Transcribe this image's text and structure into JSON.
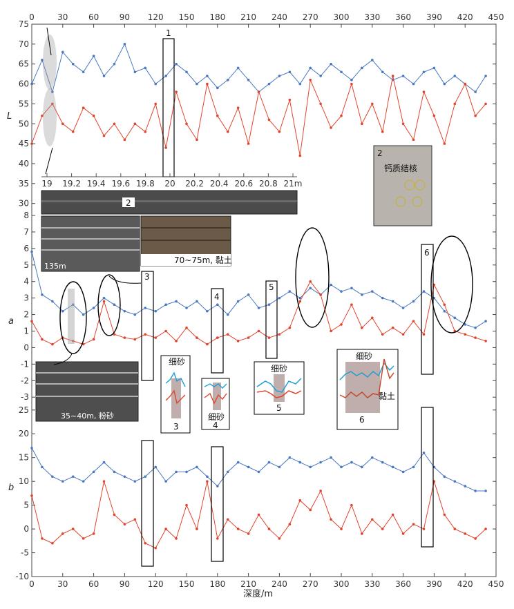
{
  "chart_data": {
    "type": "line",
    "x_axis": {
      "label": "深度/m",
      "range": [
        0,
        450
      ],
      "ticks": [
        0,
        30,
        60,
        90,
        120,
        150,
        180,
        210,
        240,
        270,
        300,
        330,
        360,
        390,
        420,
        450
      ]
    },
    "colors": {
      "blue": "#4a78c0",
      "red": "#e0442c"
    },
    "panels": [
      {
        "label": "L",
        "ylim": [
          27,
          75
        ],
        "ticks": [
          30,
          35,
          40,
          45,
          50,
          55,
          60,
          65,
          70,
          75
        ],
        "series": [
          {
            "color": "blue",
            "x": [
              0,
              10,
              20,
              30,
              40,
              50,
              60,
              70,
              80,
              90,
              100,
              110,
              120,
              130,
              140,
              150,
              160,
              170,
              180,
              190,
              200,
              210,
              220,
              230,
              240,
              250,
              260,
              270,
              280,
              290,
              300,
              310,
              320,
              330,
              340,
              350,
              360,
              370,
              380,
              390,
              400,
              410,
              420,
              430,
              440
            ],
            "y": [
              60,
              66,
              58,
              68,
              65,
              63,
              67,
              62,
              65,
              70,
              63,
              64,
              60,
              62,
              65,
              63,
              60,
              62,
              59,
              61,
              64,
              61,
              58,
              60,
              62,
              63,
              60,
              64,
              62,
              65,
              63,
              61,
              64,
              66,
              63,
              61,
              62,
              60,
              63,
              64,
              60,
              62,
              60,
              58,
              62
            ]
          },
          {
            "color": "red",
            "x": [
              0,
              10,
              20,
              30,
              40,
              50,
              60,
              70,
              80,
              90,
              100,
              110,
              120,
              130,
              140,
              150,
              160,
              170,
              180,
              190,
              200,
              210,
              220,
              230,
              240,
              250,
              260,
              270,
              280,
              290,
              300,
              310,
              320,
              330,
              340,
              350,
              360,
              370,
              380,
              390,
              400,
              410,
              420,
              430,
              440
            ],
            "y": [
              45,
              52,
              55,
              50,
              48,
              54,
              52,
              47,
              50,
              46,
              50,
              48,
              55,
              44,
              58,
              50,
              46,
              60,
              52,
              48,
              54,
              45,
              58,
              51,
              48,
              56,
              42,
              61,
              55,
              49,
              52,
              60,
              50,
              55,
              48,
              62,
              50,
              46,
              58,
              52,
              45,
              55,
              60,
              52,
              55
            ]
          }
        ]
      },
      {
        "label": "a",
        "ylim": [
          -3.2,
          8
        ],
        "ticks": [
          -3,
          -2,
          -1,
          0,
          1,
          2,
          3,
          4,
          5,
          6,
          7,
          8
        ],
        "series": [
          {
            "color": "blue",
            "x": [
              0,
              10,
              20,
              30,
              40,
              50,
              60,
              70,
              80,
              90,
              100,
              110,
              120,
              130,
              140,
              150,
              160,
              170,
              180,
              190,
              200,
              210,
              220,
              230,
              240,
              250,
              260,
              270,
              280,
              290,
              300,
              310,
              320,
              330,
              340,
              350,
              360,
              370,
              380,
              390,
              400,
              410,
              420,
              430,
              440
            ],
            "y": [
              5.8,
              3.2,
              2.8,
              2.2,
              2.6,
              2.0,
              2.4,
              3.0,
              2.6,
              2.2,
              2.0,
              2.4,
              2.2,
              2.6,
              2.8,
              2.4,
              2.8,
              2.2,
              2.6,
              2.0,
              2.8,
              3.2,
              2.4,
              2.6,
              3.0,
              3.4,
              3.0,
              3.6,
              3.2,
              3.8,
              3.4,
              3.6,
              3.2,
              3.4,
              3.0,
              2.8,
              2.4,
              2.8,
              3.4,
              3.0,
              2.2,
              1.8,
              1.4,
              1.2,
              1.6
            ]
          },
          {
            "color": "red",
            "x": [
              0,
              10,
              20,
              30,
              40,
              50,
              60,
              70,
              80,
              90,
              100,
              110,
              120,
              130,
              140,
              150,
              160,
              170,
              180,
              190,
              200,
              210,
              220,
              230,
              240,
              250,
              260,
              270,
              280,
              290,
              300,
              310,
              320,
              330,
              340,
              350,
              360,
              370,
              380,
              390,
              400,
              410,
              420,
              430,
              440
            ],
            "y": [
              1.6,
              0.5,
              0.2,
              0.6,
              0.4,
              0.2,
              0.5,
              2.8,
              0.8,
              0.6,
              0.5,
              0.8,
              0.6,
              1.0,
              0.4,
              1.2,
              0.6,
              0.2,
              0.6,
              0.8,
              0.4,
              0.6,
              1.0,
              0.6,
              0.8,
              1.2,
              2.8,
              4.0,
              3.2,
              1.0,
              1.4,
              2.6,
              1.2,
              1.8,
              0.8,
              1.2,
              0.8,
              1.6,
              0.8,
              3.8,
              2.6,
              1.0,
              0.8,
              0.6,
              0.4
            ]
          }
        ]
      },
      {
        "label": "b",
        "ylim": [
          -10,
          27
        ],
        "ticks": [
          -10,
          -5,
          0,
          5,
          10,
          15,
          20,
          25
        ],
        "series": [
          {
            "color": "blue",
            "x": [
              0,
              10,
              20,
              30,
              40,
              50,
              60,
              70,
              80,
              90,
              100,
              110,
              120,
              130,
              140,
              150,
              160,
              170,
              180,
              190,
              200,
              210,
              220,
              230,
              240,
              250,
              260,
              270,
              280,
              290,
              300,
              310,
              320,
              330,
              340,
              350,
              360,
              370,
              380,
              390,
              400,
              410,
              420,
              430,
              440
            ],
            "y": [
              17,
              13,
              11,
              10,
              11,
              10,
              12,
              14,
              12,
              11,
              10,
              11,
              13,
              10,
              12,
              12,
              13,
              11,
              9,
              12,
              14,
              13,
              12,
              14,
              13,
              15,
              14,
              13,
              14,
              15,
              13,
              14,
              13,
              15,
              14,
              13,
              12,
              13,
              16,
              13,
              11,
              10,
              9,
              8,
              8
            ]
          },
          {
            "color": "red",
            "x": [
              0,
              10,
              20,
              30,
              40,
              50,
              60,
              70,
              80,
              90,
              100,
              110,
              120,
              130,
              140,
              150,
              160,
              170,
              180,
              190,
              200,
              210,
              220,
              230,
              240,
              250,
              260,
              270,
              280,
              290,
              300,
              310,
              320,
              330,
              340,
              350,
              360,
              370,
              380,
              390,
              400,
              410,
              420,
              430,
              440
            ],
            "y": [
              7,
              -2,
              -3,
              -1,
              0,
              -2,
              -1,
              10,
              3,
              1,
              2,
              -3,
              -4,
              0,
              -2,
              5,
              0,
              10,
              -2,
              2,
              0,
              -1,
              3,
              0,
              -2,
              1,
              6,
              4,
              8,
              2,
              0,
              5,
              -1,
              2,
              0,
              3,
              -1,
              1,
              0,
              10,
              3,
              0,
              -1,
              -2,
              0
            ]
          }
        ]
      }
    ]
  },
  "annotations": {
    "marker_1": "1",
    "marker_2": "2",
    "marker_3": "3",
    "marker_4": "4",
    "marker_5": "5",
    "marker_6": "6",
    "sub_axis_ticks": [
      "19",
      "19.2",
      "19.4",
      "19.6",
      "19.8",
      "20",
      "20.2",
      "20.4",
      "20.6",
      "20.8",
      "21m"
    ],
    "photo_135": "135m",
    "photo_70_75": "70~75m, 黏土",
    "photo_35_40": "35~40m, 粉砂",
    "nodule_label": "钙质结核",
    "inset_fine_sand": "细砂",
    "inset_clay": "黏土"
  }
}
